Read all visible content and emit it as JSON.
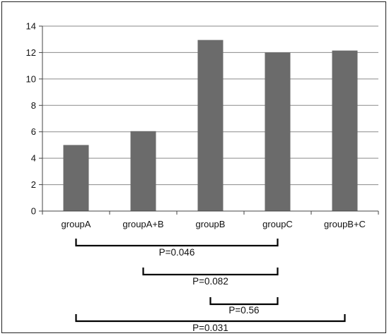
{
  "chart_data": {
    "type": "bar",
    "categories": [
      "groupA",
      "groupA+B",
      "groupB",
      "groupC",
      "groupB+C"
    ],
    "values": [
      5.0,
      6.05,
      12.95,
      12.0,
      12.15
    ],
    "ylim": [
      0,
      14
    ],
    "yticks": [
      0,
      2,
      4,
      6,
      8,
      10,
      12,
      14
    ],
    "grid": true,
    "bar_color": "#6b6b6b",
    "comparisons": [
      {
        "from": "groupA",
        "to": "groupC",
        "label": "P=0.046"
      },
      {
        "from": "groupA+B",
        "to": "groupC",
        "label": "P=0.082"
      },
      {
        "from": "groupB",
        "to": "groupC",
        "label": "P=0.56"
      },
      {
        "from": "groupA",
        "to": "groupB+C",
        "label": "P=0.031"
      }
    ]
  }
}
